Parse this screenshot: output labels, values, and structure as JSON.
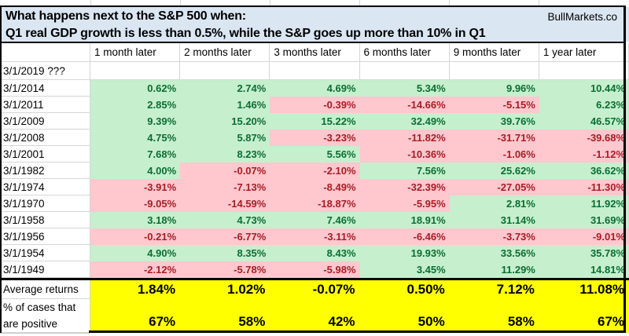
{
  "title": {
    "line1": "What happens next to the S&P 500 when:",
    "line2": "Q1 real GDP growth is less than 0.5%, while the S&P goes up more than 10% in Q1"
  },
  "brand": "BullMarkets.co",
  "colors": {
    "title_bg": "#DAE6F2",
    "positive_fill": "#C6EFCE",
    "positive_text": "#0B6E31",
    "negative_fill": "#FFC7CE",
    "negative_text": "#A51E25",
    "summary_fill": "#FFFF00",
    "gridline": "#D6D6D6"
  },
  "chart_data": {
    "type": "table",
    "title": "What happens next to the S&P 500 when: Q1 real GDP growth is less than 0.5%, while the S&P goes up more than 10% in Q1",
    "columns": [
      "1 month later",
      "2 months later",
      "3 months later",
      "6 months later",
      "9 months later",
      "1 year later"
    ],
    "pending_row": {
      "label": "3/1/2019 ???",
      "values": [
        "",
        "",
        "",
        "",
        "",
        ""
      ]
    },
    "rows": [
      {
        "label": "3/1/2014",
        "values": [
          "0.62%",
          "2.74%",
          "4.69%",
          "5.34%",
          "9.96%",
          "10.44%"
        ]
      },
      {
        "label": "3/1/2011",
        "values": [
          "2.85%",
          "1.46%",
          "-0.39%",
          "-14.66%",
          "-5.15%",
          "6.23%"
        ]
      },
      {
        "label": "3/1/2009",
        "values": [
          "9.39%",
          "15.20%",
          "15.22%",
          "32.49%",
          "39.76%",
          "46.57%"
        ]
      },
      {
        "label": "3/1/2008",
        "values": [
          "4.75%",
          "5.87%",
          "-3.23%",
          "-11.82%",
          "-31.71%",
          "-39.68%"
        ]
      },
      {
        "label": "3/1/2001",
        "values": [
          "7.68%",
          "8.23%",
          "5.56%",
          "-10.36%",
          "-1.06%",
          "-1.12%"
        ]
      },
      {
        "label": "3/1/1982",
        "values": [
          "4.00%",
          "-0.07%",
          "-2.10%",
          "7.56%",
          "25.62%",
          "36.62%"
        ]
      },
      {
        "label": "3/1/1974",
        "values": [
          "-3.91%",
          "-7.13%",
          "-8.49%",
          "-32.39%",
          "-27.05%",
          "-11.30%"
        ]
      },
      {
        "label": "3/1/1970",
        "values": [
          "-9.05%",
          "-14.59%",
          "-18.87%",
          "-5.95%",
          "2.81%",
          "11.92%"
        ]
      },
      {
        "label": "3/1/1958",
        "values": [
          "3.18%",
          "4.73%",
          "7.46%",
          "18.91%",
          "31.14%",
          "31.69%"
        ]
      },
      {
        "label": "3/1/1956",
        "values": [
          "-0.21%",
          "-6.77%",
          "-3.11%",
          "-6.46%",
          "-3.73%",
          "-9.01%"
        ]
      },
      {
        "label": "3/1/1954",
        "values": [
          "4.90%",
          "8.35%",
          "8.43%",
          "19.93%",
          "33.56%",
          "35.78%"
        ]
      },
      {
        "label": "3/1/1949",
        "values": [
          "-2.12%",
          "-5.78%",
          "-5.98%",
          "3.45%",
          "11.29%",
          "14.81%"
        ]
      }
    ],
    "summary": [
      {
        "label": "Average returns",
        "label_lines": [
          "Average returns"
        ],
        "values": [
          "1.84%",
          "1.02%",
          "-0.07%",
          "0.50%",
          "7.12%",
          "11.08%"
        ]
      },
      {
        "label": "% of cases that are positive",
        "label_lines": [
          "% of cases that",
          "are positive"
        ],
        "values": [
          "67%",
          "58%",
          "42%",
          "50%",
          "58%",
          "67%"
        ]
      }
    ],
    "legend": {
      "positive": "green fill",
      "negative": "red fill",
      "summary": "yellow fill"
    }
  }
}
